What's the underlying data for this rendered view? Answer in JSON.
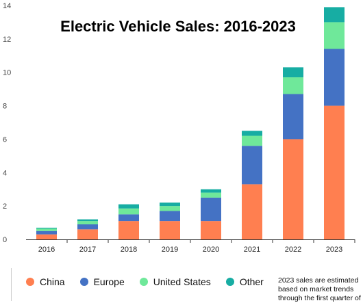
{
  "chart_data": {
    "type": "bar",
    "stacked": true,
    "title": "Electric Vehicle Sales: 2016-2023",
    "xlabel": "",
    "ylabel": "",
    "ylim": [
      0,
      14
    ],
    "yticks": [
      0,
      2,
      4,
      6,
      8,
      10,
      12,
      14
    ],
    "grid": false,
    "legend_position": "bottom",
    "categories": [
      "2016",
      "2017",
      "2018",
      "2019",
      "2020",
      "2021",
      "2022",
      "2023"
    ],
    "series": [
      {
        "name": "China",
        "color": "#ff7f50",
        "values": [
          0.3,
          0.6,
          1.1,
          1.1,
          1.1,
          3.3,
          6.0,
          8.0
        ]
      },
      {
        "name": "Europe",
        "color": "#4472c4",
        "values": [
          0.2,
          0.3,
          0.4,
          0.6,
          1.4,
          2.3,
          2.7,
          3.4
        ]
      },
      {
        "name": "United States",
        "color": "#6fe89a",
        "values": [
          0.15,
          0.2,
          0.35,
          0.3,
          0.3,
          0.6,
          1.0,
          1.6
        ]
      },
      {
        "name": "Other",
        "color": "#17ada3",
        "values": [
          0.05,
          0.1,
          0.25,
          0.2,
          0.2,
          0.3,
          0.6,
          0.9
        ]
      }
    ]
  },
  "footnote": "2023 sales are estimated based on market trends through the first quarter of"
}
